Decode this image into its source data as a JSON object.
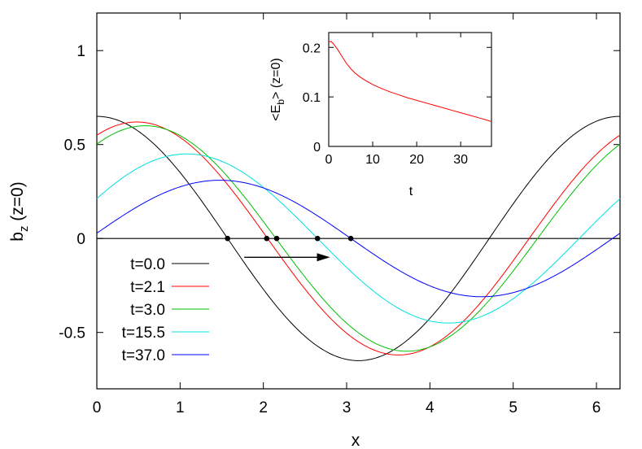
{
  "chart_data": [
    {
      "type": "line",
      "xlabel": "x",
      "ylabel_main": "b",
      "ylabel_sub": "z",
      "ylabel_rest": " (z=0)",
      "xlim": [
        0,
        6.2832
      ],
      "ylim": [
        -0.8,
        1.2
      ],
      "xticks": [
        0,
        1,
        2,
        3,
        4,
        5,
        6
      ],
      "yticks": [
        -0.5,
        0,
        0.5,
        1
      ],
      "ytick_labels": [
        "-0.5",
        "0",
        "0.5",
        "1"
      ],
      "legend_position": "bottom-left",
      "series": [
        {
          "name": "t=0.0",
          "color": "#000000",
          "amplitude": 0.65,
          "phase": 0.0
        },
        {
          "name": "t=2.1",
          "color": "#ff0000",
          "amplitude": 0.62,
          "phase": 0.48
        },
        {
          "name": "t=3.0",
          "color": "#00c000",
          "amplitude": 0.6,
          "phase": 0.58
        },
        {
          "name": "t=15.5",
          "color": "#00e0e0",
          "amplitude": 0.45,
          "phase": 1.08
        },
        {
          "name": "t=37.0",
          "color": "#0000ff",
          "amplitude": 0.31,
          "phase": 1.48
        }
      ],
      "zero_crossings": [
        1.57,
        2.04,
        2.16,
        2.65,
        3.05
      ],
      "arrow": {
        "from": 1.77,
        "to": 2.8,
        "y": -0.1
      }
    },
    {
      "type": "line",
      "xlabel": "t",
      "ylabel_main": "<E",
      "ylabel_sub": "b",
      "ylabel_rest": "> (z=0)",
      "xlim": [
        0,
        37
      ],
      "ylim": [
        0,
        0.23
      ],
      "xticks": [
        0,
        10,
        20,
        30
      ],
      "yticks": [
        0,
        0.1,
        0.2
      ],
      "ytick_labels": [
        "0",
        "0.1",
        "0.2"
      ],
      "series": [
        {
          "name": "",
          "color": "#ff0000",
          "x": [
            0,
            0.5,
            1,
            2,
            3,
            4,
            5,
            6,
            7,
            8,
            10,
            12,
            14,
            16,
            18,
            20,
            22,
            24,
            26,
            28,
            30,
            32,
            34,
            36,
            37
          ],
          "y": [
            0.211,
            0.212,
            0.208,
            0.196,
            0.182,
            0.168,
            0.157,
            0.148,
            0.141,
            0.135,
            0.125,
            0.117,
            0.11,
            0.104,
            0.098,
            0.093,
            0.088,
            0.083,
            0.078,
            0.073,
            0.068,
            0.063,
            0.058,
            0.053,
            0.05
          ]
        }
      ]
    }
  ]
}
